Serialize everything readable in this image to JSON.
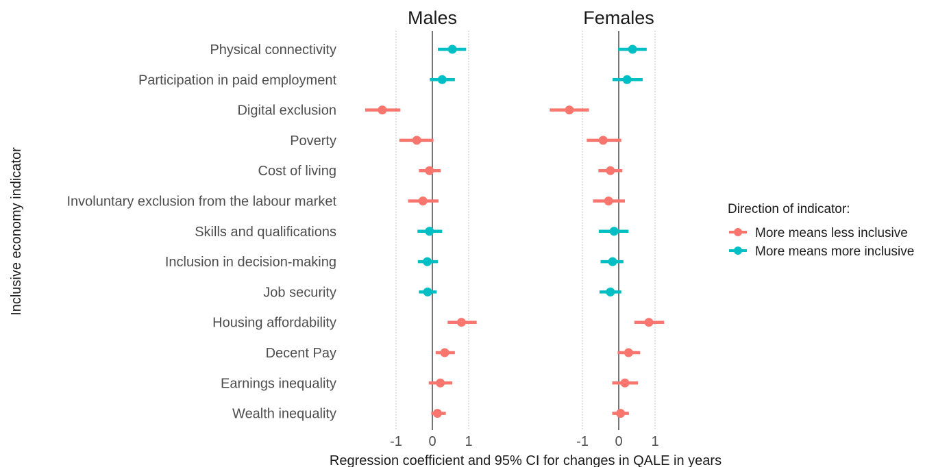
{
  "chart_data": {
    "type": "forest",
    "xlabel": "Regression coefficient and 95% CI for changes in QALE in years",
    "ylabel": "Inclusive economy indicator",
    "x_ticks": [
      "-1",
      "0",
      "1"
    ],
    "x_tick_values": [
      -1,
      0,
      1
    ],
    "xlim": [
      -2.05,
      1.4
    ],
    "grid": "vertical dotted at -1 and 1; solid line at 0",
    "indicators": [
      "Physical connectivity",
      "Participation in paid employment",
      "Digital exclusion",
      "Poverty",
      "Cost of living",
      "Involuntary exclusion from the labour market",
      "Skills and qualifications",
      "Inclusion in decision-making",
      "Job security",
      "Housing affordability",
      "Decent Pay",
      "Earnings inequality",
      "Wealth inequality"
    ],
    "direction": [
      "more",
      "more",
      "less",
      "less",
      "less",
      "less",
      "more",
      "more",
      "more",
      "less",
      "less",
      "less",
      "less"
    ],
    "legend": {
      "title": "Direction of indicator:",
      "position": "right",
      "entries": [
        {
          "key": "less",
          "label": "More means less inclusive",
          "color": "#F8766D"
        },
        {
          "key": "more",
          "label": "More means more inclusive",
          "color": "#00BFC4"
        }
      ]
    },
    "panels": [
      {
        "title": "Males",
        "estimate": [
          0.55,
          0.27,
          -1.38,
          -0.43,
          -0.08,
          -0.26,
          -0.08,
          -0.14,
          -0.13,
          0.8,
          0.34,
          0.22,
          0.14
        ],
        "lower": [
          0.15,
          -0.07,
          -1.85,
          -0.91,
          -0.37,
          -0.67,
          -0.41,
          -0.4,
          -0.37,
          0.42,
          0.09,
          -0.1,
          -0.03
        ],
        "upper": [
          0.93,
          0.62,
          -0.88,
          0.03,
          0.23,
          0.17,
          0.27,
          0.15,
          0.12,
          1.22,
          0.62,
          0.55,
          0.37
        ]
      },
      {
        "title": "Females",
        "estimate": [
          0.38,
          0.23,
          -1.36,
          -0.43,
          -0.23,
          -0.28,
          -0.13,
          -0.17,
          -0.23,
          0.83,
          0.27,
          0.17,
          0.05
        ],
        "lower": [
          -0.02,
          -0.17,
          -1.9,
          -0.88,
          -0.56,
          -0.71,
          -0.55,
          -0.5,
          -0.53,
          0.43,
          -0.03,
          -0.18,
          -0.18
        ],
        "upper": [
          0.77,
          0.66,
          -0.82,
          0.07,
          0.1,
          0.17,
          0.27,
          0.13,
          0.07,
          1.25,
          0.59,
          0.53,
          0.28
        ]
      }
    ]
  }
}
